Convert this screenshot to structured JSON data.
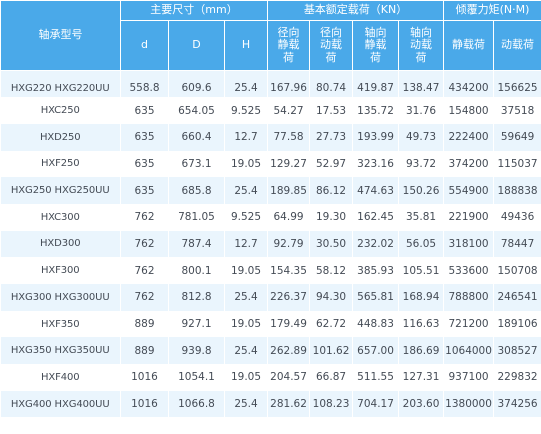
{
  "headers": {
    "model": "轴承型号",
    "dimensions": "主要尺寸（mm）",
    "load": "基本额定载荷（KN）",
    "moment": "倾覆力矩(N·M)",
    "sub": [
      "d",
      "D",
      "H",
      "径向静载荷",
      "径向动载荷",
      "轴向静载荷",
      "轴向动载荷",
      "静载荷",
      "动载荷"
    ]
  },
  "rows": [
    [
      "HXG220  HXG220UU",
      "558.8",
      "609.6",
      "25.4",
      "167.96",
      "80.74",
      "419.87",
      "138.47",
      "434200",
      "156625"
    ],
    [
      "HXC250",
      "635",
      "654.05",
      "9.525",
      "54.27",
      "17.53",
      "135.72",
      "31.76",
      "154800",
      "37518"
    ],
    [
      "HXD250",
      "635",
      "660.4",
      "12.7",
      "77.58",
      "27.73",
      "193.99",
      "49.73",
      "222400",
      "59649"
    ],
    [
      "HXF250",
      "635",
      "673.1",
      "19.05",
      "129.27",
      "52.97",
      "323.16",
      "93.72",
      "374200",
      "115037"
    ],
    [
      "HXG250  HXG250UU",
      "635",
      "685.8",
      "25.4",
      "189.85",
      "86.12",
      "474.63",
      "150.26",
      "554900",
      "188838"
    ],
    [
      "HXC300",
      "762",
      "781.05",
      "9.525",
      "64.99",
      "19.30",
      "162.45",
      "35.81",
      "221900",
      "49436"
    ],
    [
      "HXD300",
      "762",
      "787.4",
      "12.7",
      "92.79",
      "30.50",
      "232.02",
      "56.05",
      "318100",
      "78447"
    ],
    [
      "HXF300",
      "762",
      "800.1",
      "19.05",
      "154.35",
      "58.12",
      "385.93",
      "105.51",
      "533600",
      "150708"
    ],
    [
      "HXG300  HXG300UU",
      "762",
      "812.8",
      "25.4",
      "226.37",
      "94.30",
      "565.81",
      "168.94",
      "788800",
      "246541"
    ],
    [
      "HXF350",
      "889",
      "927.1",
      "19.05",
      "179.49",
      "62.72",
      "448.83",
      "116.63",
      "721200",
      "189106"
    ],
    [
      "HXG350  HXG350UU",
      "889",
      "939.8",
      "25.4",
      "262.89",
      "101.62",
      "657.00",
      "186.69",
      "1064000",
      "308527"
    ],
    [
      "HXF400",
      "1016",
      "1054.1",
      "19.05",
      "204.57",
      "66.87",
      "511.55",
      "127.31",
      "937100",
      "229832"
    ],
    [
      "HXG400  HXG400UU",
      "1016",
      "1066.8",
      "25.4",
      "281.62",
      "108.23",
      "704.17",
      "203.60",
      "1380000",
      "374256"
    ]
  ]
}
